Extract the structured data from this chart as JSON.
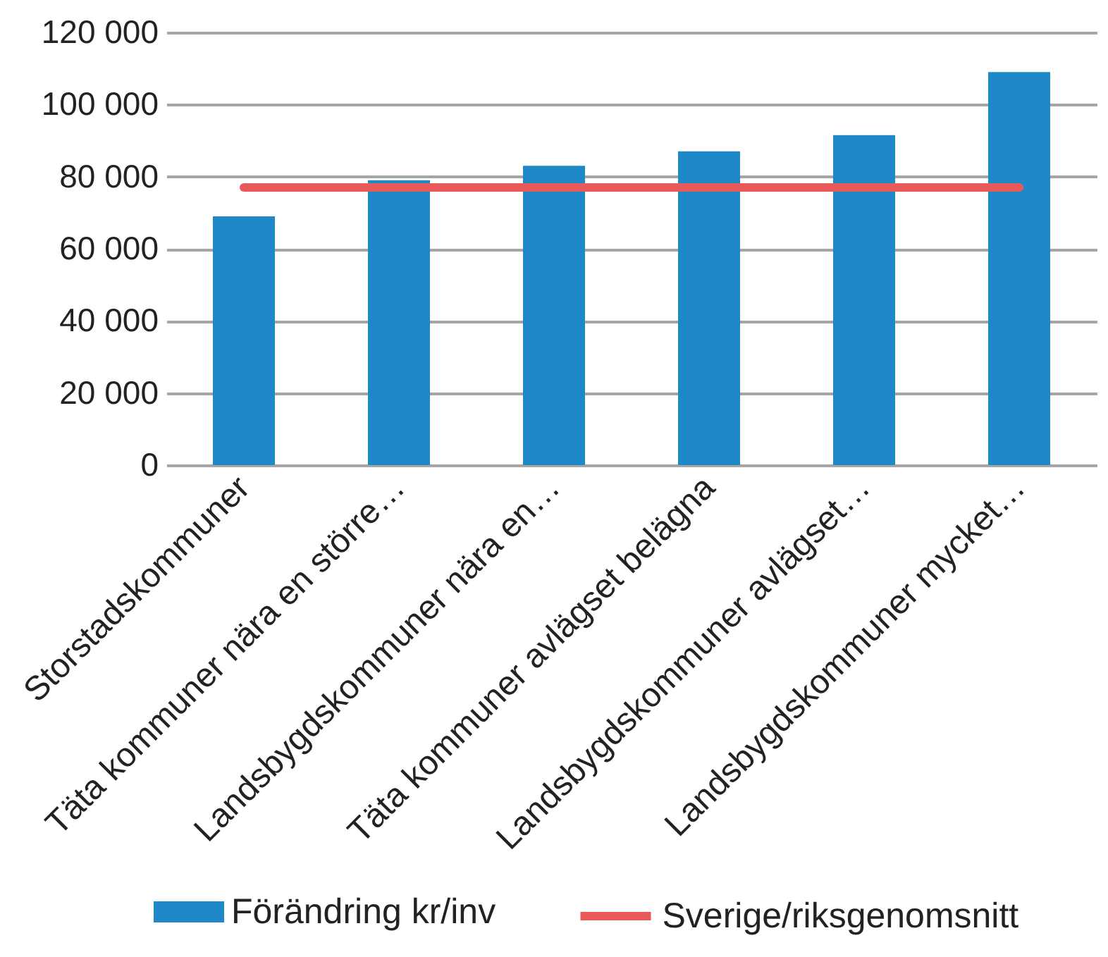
{
  "chart_data": {
    "type": "bar",
    "categories": [
      "Storstadskommuner",
      "Täta kommuner nära en större…",
      "Landsbygdskommuner nära en…",
      "Täta kommuner avlägset belägna",
      "Landsbygdskommuner avlägset…",
      "Landsbygdskommuner mycket…"
    ],
    "series": [
      {
        "name": "Förändring kr/inv",
        "color": "#1f88c6",
        "values": [
          69000,
          79000,
          83000,
          87000,
          91500,
          109000
        ]
      },
      {
        "name": "Sverige/riksgenomsnitt",
        "type": "line",
        "color": "#e8595a",
        "values": [
          77000,
          77000,
          77000,
          77000,
          77000,
          77000
        ]
      }
    ],
    "ylim": [
      0,
      120000
    ],
    "yticks": [
      0,
      {
        "value": 20000,
        "label": "20 000"
      },
      {
        "value": 40000,
        "label": "40 000"
      },
      {
        "value": 60000,
        "label": "60 000"
      },
      {
        "value": 80000,
        "label": "80 000"
      },
      {
        "value": 100000,
        "label": "100 000"
      },
      {
        "value": 120000,
        "label": "120 000"
      }
    ],
    "grid": "y",
    "legend": "bottom"
  }
}
